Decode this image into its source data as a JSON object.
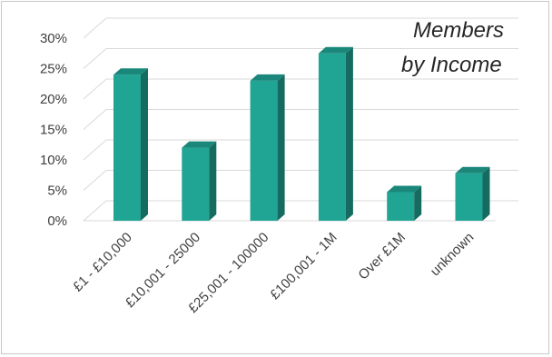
{
  "chart_data": {
    "type": "bar",
    "title_lines": [
      "Members",
      "by Income"
    ],
    "categories": [
      "£1 - £10,000",
      "£10,001 - 25000",
      "£25,001 - 100000",
      "£100,001 - 1M",
      "Over £1M",
      "unknown"
    ],
    "values": [
      24,
      12,
      23,
      27.5,
      4.7,
      7.8
    ],
    "yticks": [
      "0%",
      "5%",
      "10%",
      "15%",
      "20%",
      "25%",
      "30%"
    ],
    "ylim": [
      0,
      30
    ],
    "grid": true,
    "colors": {
      "front": "#20a594",
      "side": "#156b60",
      "top": "#1a877a",
      "grid": "#d9d9d9"
    }
  }
}
